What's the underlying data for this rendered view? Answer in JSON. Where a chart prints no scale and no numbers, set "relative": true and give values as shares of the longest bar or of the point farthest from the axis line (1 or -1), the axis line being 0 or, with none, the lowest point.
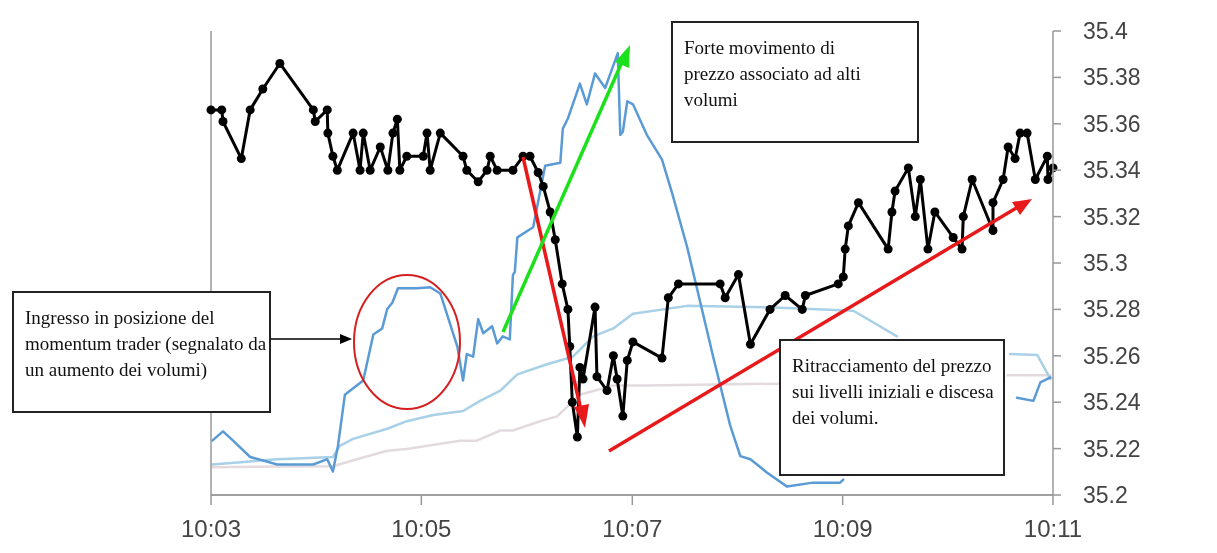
{
  "chart_data": [
    {
      "type": "line",
      "relative": true,
      "xlim": [
        10.05,
        10.1833
      ],
      "xticks": [
        {
          "value": 10.05,
          "label": "10:03"
        },
        {
          "value": 10.0833,
          "label": "10:05"
        },
        {
          "value": 10.1167,
          "label": "10:07"
        },
        {
          "value": 10.15,
          "label": "10:09"
        },
        {
          "value": 10.1833,
          "label": "10:11"
        }
      ],
      "series": [
        {
          "color": "#e3dadf",
          "marker": "none",
          "x": [
            10.0502,
            10.0693,
            10.0731,
            10.0779,
            10.081,
            10.0894,
            10.0921,
            10.0958,
            10.0978,
            10.1021,
            10.1048,
            10.1084,
            10.1137,
            10.119,
            10.1401,
            10.165,
            10.1761,
            10.1829
          ],
          "values": [
            0.063,
            0.065,
            0.081,
            0.1,
            0.104,
            0.123,
            0.123,
            0.146,
            0.146,
            0.167,
            0.178,
            0.227,
            0.248,
            0.248,
            0.252,
            null,
            0.271,
            0.271
          ]
        },
        {
          "color": "#a8d0e6",
          "marker": "none",
          "x": [
            10.0502,
            10.0605,
            10.0693,
            10.0704,
            10.0725,
            10.0779,
            10.081,
            10.0852,
            10.0899,
            10.0926,
            10.0958,
            10.0985,
            10.1032,
            10.1073,
            10.1105,
            10.1137,
            10.1168,
            10.1254,
            10.1401,
            10.1517,
            10.1586,
            10.165,
            10.1765,
            10.1808,
            10.1829
          ],
          "values": [
            0.069,
            0.081,
            0.086,
            0.111,
            0.127,
            0.15,
            0.167,
            0.181,
            0.19,
            0.213,
            0.236,
            0.273,
            0.296,
            0.313,
            0.359,
            0.377,
            0.41,
            0.428,
            0.424,
            0.417,
            0.359,
            null,
            0.319,
            0.317,
            0.262
          ]
        },
        {
          "color": "#5b9bd5",
          "marker": "none",
          "x": [
            10.0502,
            10.0519,
            10.0535,
            10.0562,
            10.0605,
            10.0662,
            10.0684,
            10.0693,
            10.0701,
            10.0712,
            10.072,
            10.0741,
            10.0757,
            10.0771,
            10.0779,
            10.0787,
            10.0796,
            10.0826,
            10.0847,
            10.0863,
            10.089,
            10.0899,
            10.0905,
            10.0915,
            10.0923,
            10.0931,
            10.0945,
            10.0953,
            10.0962,
            10.0973,
            10.0978,
            10.0981,
            10.0985,
            10.101,
            10.1029,
            10.1053,
            10.1057,
            10.1065,
            10.108,
            10.1084,
            10.1095,
            10.1108,
            10.1124,
            10.1144,
            10.1148,
            10.1152,
            10.1159,
            10.1168,
            10.119,
            10.1214,
            10.123,
            10.1254,
            10.1295,
            10.1322,
            10.1338,
            10.1354,
            10.138,
            10.1412,
            10.1453,
            10.1496,
            10.1501,
            10.165,
            10.1776,
            10.1802,
            10.1813,
            10.1829
          ],
          "values": [
            0.123,
            0.144,
            0.123,
            0.086,
            0.069,
            0.069,
            0.081,
            0.053,
            0.111,
            0.227,
            0.236,
            0.259,
            0.363,
            0.377,
            0.421,
            0.435,
            0.468,
            0.468,
            0.47,
            0.456,
            0.336,
            0.259,
            0.319,
            0.313,
            0.398,
            0.366,
            0.382,
            0.343,
            0.359,
            0.352,
            0.498,
            0.505,
            0.583,
            0.606,
            0.745,
            0.752,
            0.829,
            0.852,
            0.914,
            0.931,
            0.884,
            0.954,
            0.921,
            1,
            0.815,
            0.822,
            0.891,
            0.884,
            0.815,
            0.759,
            0.683,
            0.56,
            0.313,
            0.157,
            0.088,
            0.081,
            0.051,
            0.019,
            0.028,
            0.028,
            0.035,
            null,
            0.22,
            0.213,
            0.255,
            0.266
          ]
        }
      ]
    },
    {
      "type": "line",
      "tick_labels": "y",
      "xlim": [
        10.05,
        10.1833
      ],
      "y2lim": [
        35.2,
        35.4
      ],
      "y2ticks": [
        35.2,
        35.22,
        35.24,
        35.26,
        35.28,
        35.3,
        35.32,
        35.34,
        35.36,
        35.38,
        35.4
      ],
      "series": [
        {
          "color": "#000000",
          "marker": "circle",
          "axis": "y2",
          "x": [
            10.05,
            10.0517,
            10.0519,
            10.0548,
            10.0562,
            10.0582,
            10.0609,
            10.0662,
            10.0665,
            10.0684,
            10.0685,
            10.0693,
            10.07,
            10.0725,
            10.0736,
            10.0741,
            10.0752,
            10.0768,
            10.078,
            10.0788,
            10.0795,
            10.0799,
            10.081,
            10.0836,
            10.0842,
            10.0847,
            10.0863,
            10.0899,
            10.0905,
            10.0923,
            10.0937,
            10.0942,
            10.0953,
            10.0978,
            10.0994,
            10.1005,
            10.1018,
            10.1026,
            10.1037,
            10.1045,
            10.1056,
            10.1065,
            10.1068,
            10.1072,
            10.108,
            10.1084,
            10.1089,
            10.1108,
            10.1111,
            10.1127,
            10.1137,
            10.1143,
            10.1152,
            10.1159,
            10.1168,
            10.1214,
            10.1224,
            10.124,
            10.1306,
            10.1314,
            10.1335,
            10.1354,
            10.1385,
            10.1409,
            10.1436,
            10.1441,
            10.1493,
            10.1501,
            10.1504,
            10.1509,
            10.1525,
            10.1572,
            10.1578,
            10.1583,
            10.1604,
            10.1615,
            10.1623,
            10.1635,
            10.1646,
            10.1675,
            10.1689,
            10.1691,
            10.1705,
            10.1738,
            10.1738,
            10.1754,
            10.1762,
            10.1773,
            10.1781,
            10.1792,
            10.1805,
            10.1824,
            10.1825,
            10.1833
          ],
          "values": [
            35.366,
            35.366,
            35.361,
            35.345,
            35.366,
            35.375,
            35.386,
            35.366,
            35.361,
            35.366,
            35.356,
            35.346,
            35.34,
            35.356,
            35.34,
            35.356,
            35.34,
            35.35,
            35.34,
            35.356,
            35.362,
            35.34,
            35.346,
            35.346,
            35.356,
            35.34,
            35.356,
            35.346,
            35.34,
            35.335,
            35.34,
            35.346,
            35.34,
            35.34,
            35.346,
            35.346,
            35.339,
            35.333,
            35.322,
            35.31,
            35.291,
            35.28,
            35.264,
            35.24,
            35.225,
            35.255,
            35.25,
            35.281,
            35.251,
            35.245,
            35.26,
            35.25,
            35.234,
            35.258,
            35.266,
            35.259,
            35.285,
            35.291,
            35.291,
            35.285,
            35.295,
            35.265,
            35.28,
            35.286,
            35.28,
            35.286,
            35.291,
            35.294,
            35.306,
            35.316,
            35.326,
            35.306,
            35.322,
            35.331,
            35.341,
            35.32,
            35.336,
            35.306,
            35.322,
            35.311,
            35.306,
            35.32,
            35.336,
            35.314,
            35.326,
            35.336,
            35.35,
            35.345,
            35.356,
            35.356,
            35.336,
            35.346,
            35.336,
            35.341
          ]
        }
      ],
      "annotations": [
        "Ingresso in posizione del momentum trader (segnalato da un aumento dei volumi)",
        "Forte movimento di prezzo associato ad alti volumi",
        "Ritracciamento del prezzo sui livelli iniziali e discesa dei volumi."
      ]
    }
  ]
}
